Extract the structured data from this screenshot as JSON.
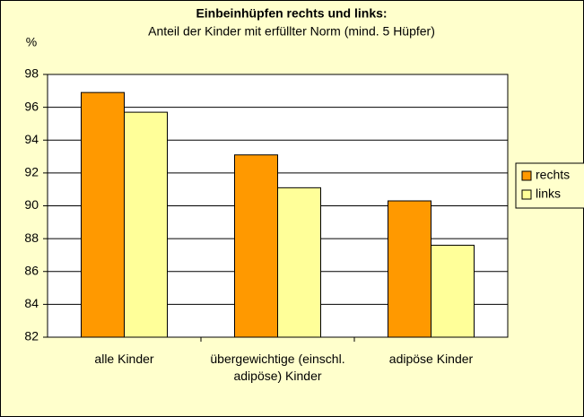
{
  "chart_data": {
    "type": "bar",
    "title": "Einbeinhüpfen rechts und links:",
    "subtitle": "Anteil der Kinder mit erfüllter Norm (mind. 5 Hüpfer)",
    "y_label": "%",
    "categories": [
      "alle Kinder",
      "übergewichtige (einschl. adipöse) Kinder",
      "adipöse Kinder"
    ],
    "series": [
      {
        "name": "rechts",
        "color": "#ff9900",
        "values": [
          96.9,
          93.1,
          90.3
        ]
      },
      {
        "name": "links",
        "color": "#ffff99",
        "values": [
          95.7,
          91.1,
          87.6
        ]
      }
    ],
    "ylim": [
      82,
      98
    ],
    "yticks": [
      82,
      84,
      86,
      88,
      90,
      92,
      94,
      96,
      98
    ],
    "grid": true,
    "legend": "right"
  }
}
